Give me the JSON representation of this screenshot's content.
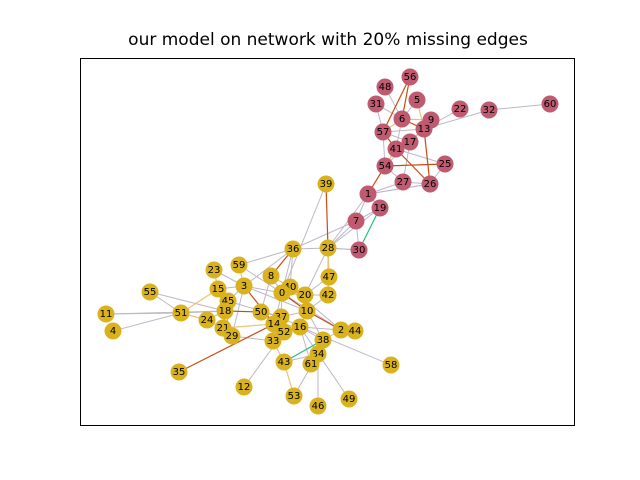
{
  "title": "our model on network with 20% missing edges",
  "colors": {
    "community_red": "#c05a70",
    "community_gold": "#dab21e",
    "edge_observed": "#bdb8c6",
    "edge_predicted_correct": "#cc4b12",
    "edge_predicted_other": "#e9c37a",
    "edge_green": "#1fc07a"
  },
  "nodes": [
    {
      "id": "56",
      "group": "red"
    },
    {
      "id": "48",
      "group": "red"
    },
    {
      "id": "5",
      "group": "red"
    },
    {
      "id": "31",
      "group": "red"
    },
    {
      "id": "6",
      "group": "red"
    },
    {
      "id": "9",
      "group": "red"
    },
    {
      "id": "22",
      "group": "red"
    },
    {
      "id": "32",
      "group": "red"
    },
    {
      "id": "60",
      "group": "red"
    },
    {
      "id": "57",
      "group": "red"
    },
    {
      "id": "13",
      "group": "red"
    },
    {
      "id": "17",
      "group": "red"
    },
    {
      "id": "41",
      "group": "red"
    },
    {
      "id": "54",
      "group": "red"
    },
    {
      "id": "25",
      "group": "red"
    },
    {
      "id": "27",
      "group": "red"
    },
    {
      "id": "26",
      "group": "red"
    },
    {
      "id": "1",
      "group": "red"
    },
    {
      "id": "19",
      "group": "red"
    },
    {
      "id": "7",
      "group": "red"
    },
    {
      "id": "30",
      "group": "red"
    },
    {
      "id": "39",
      "group": "gold"
    },
    {
      "id": "36",
      "group": "gold"
    },
    {
      "id": "28",
      "group": "gold"
    },
    {
      "id": "59",
      "group": "gold"
    },
    {
      "id": "23",
      "group": "gold"
    },
    {
      "id": "8",
      "group": "gold"
    },
    {
      "id": "47",
      "group": "gold"
    },
    {
      "id": "3",
      "group": "gold"
    },
    {
      "id": "15",
      "group": "gold"
    },
    {
      "id": "40",
      "group": "gold"
    },
    {
      "id": "0",
      "group": "gold"
    },
    {
      "id": "20",
      "group": "gold"
    },
    {
      "id": "42",
      "group": "gold"
    },
    {
      "id": "55",
      "group": "gold"
    },
    {
      "id": "45",
      "group": "gold"
    },
    {
      "id": "18",
      "group": "gold"
    },
    {
      "id": "50",
      "group": "gold"
    },
    {
      "id": "37",
      "group": "gold"
    },
    {
      "id": "10",
      "group": "gold"
    },
    {
      "id": "51",
      "group": "gold"
    },
    {
      "id": "24",
      "group": "gold"
    },
    {
      "id": "14",
      "group": "gold"
    },
    {
      "id": "16",
      "group": "gold"
    },
    {
      "id": "52",
      "group": "gold"
    },
    {
      "id": "21",
      "group": "gold"
    },
    {
      "id": "29",
      "group": "gold"
    },
    {
      "id": "33",
      "group": "gold"
    },
    {
      "id": "2",
      "group": "gold"
    },
    {
      "id": "44",
      "group": "gold"
    },
    {
      "id": "38",
      "group": "gold"
    },
    {
      "id": "11",
      "group": "gold"
    },
    {
      "id": "4",
      "group": "gold"
    },
    {
      "id": "34",
      "group": "gold"
    },
    {
      "id": "43",
      "group": "gold"
    },
    {
      "id": "61",
      "group": "gold"
    },
    {
      "id": "58",
      "group": "gold"
    },
    {
      "id": "35",
      "group": "gold"
    },
    {
      "id": "12",
      "group": "gold"
    },
    {
      "id": "53",
      "group": "gold"
    },
    {
      "id": "46",
      "group": "gold"
    },
    {
      "id": "49",
      "group": "gold"
    }
  ],
  "edges": [
    [
      "56",
      "6",
      "correct"
    ],
    [
      "56",
      "57",
      "correct"
    ],
    [
      "48",
      "6",
      "observed"
    ],
    [
      "5",
      "6",
      "observed"
    ],
    [
      "5",
      "13",
      "other"
    ],
    [
      "31",
      "6",
      "observed"
    ],
    [
      "31",
      "57",
      "observed"
    ],
    [
      "6",
      "9",
      "other"
    ],
    [
      "6",
      "13",
      "correct"
    ],
    [
      "6",
      "57",
      "other"
    ],
    [
      "6",
      "41",
      "observed"
    ],
    [
      "9",
      "13",
      "observed"
    ],
    [
      "9",
      "17",
      "observed"
    ],
    [
      "22",
      "13",
      "observed"
    ],
    [
      "32",
      "13",
      "observed"
    ],
    [
      "60",
      "32",
      "observed"
    ],
    [
      "57",
      "13",
      "observed"
    ],
    [
      "57",
      "17",
      "observed"
    ],
    [
      "57",
      "41",
      "correct"
    ],
    [
      "57",
      "54",
      "observed"
    ],
    [
      "13",
      "17",
      "other"
    ],
    [
      "13",
      "26",
      "correct"
    ],
    [
      "17",
      "41",
      "other"
    ],
    [
      "17",
      "54",
      "observed"
    ],
    [
      "17",
      "27",
      "observed"
    ],
    [
      "41",
      "54",
      "other"
    ],
    [
      "41",
      "25",
      "observed"
    ],
    [
      "41",
      "26",
      "correct"
    ],
    [
      "54",
      "25",
      "correct"
    ],
    [
      "54",
      "1",
      "correct"
    ],
    [
      "54",
      "27",
      "observed"
    ],
    [
      "25",
      "26",
      "observed"
    ],
    [
      "27",
      "26",
      "observed"
    ],
    [
      "27",
      "1",
      "observed"
    ],
    [
      "26",
      "1",
      "observed"
    ],
    [
      "1",
      "19",
      "observed"
    ],
    [
      "1",
      "7",
      "observed"
    ],
    [
      "1",
      "26",
      "observed"
    ],
    [
      "19",
      "7",
      "observed"
    ],
    [
      "19",
      "30",
      "green"
    ],
    [
      "7",
      "30",
      "observed"
    ],
    [
      "7",
      "36",
      "observed"
    ],
    [
      "7",
      "28",
      "observed"
    ],
    [
      "1",
      "28",
      "observed"
    ],
    [
      "19",
      "28",
      "observed"
    ],
    [
      "30",
      "28",
      "observed"
    ],
    [
      "39",
      "28",
      "correct"
    ],
    [
      "39",
      "0",
      "observed"
    ],
    [
      "36",
      "28",
      "observed"
    ],
    [
      "36",
      "59",
      "observed"
    ],
    [
      "36",
      "8",
      "correct"
    ],
    [
      "36",
      "0",
      "observed"
    ],
    [
      "36",
      "40",
      "observed"
    ],
    [
      "36",
      "3",
      "observed"
    ],
    [
      "28",
      "47",
      "other"
    ],
    [
      "28",
      "30",
      "observed"
    ],
    [
      "28",
      "20",
      "observed"
    ],
    [
      "28",
      "42",
      "observed"
    ],
    [
      "59",
      "3",
      "other"
    ],
    [
      "59",
      "0",
      "observed"
    ],
    [
      "23",
      "3",
      "observed"
    ],
    [
      "23",
      "15",
      "other"
    ],
    [
      "8",
      "0",
      "observed"
    ],
    [
      "8",
      "40",
      "other"
    ],
    [
      "47",
      "20",
      "observed"
    ],
    [
      "47",
      "42",
      "other"
    ],
    [
      "3",
      "15",
      "observed"
    ],
    [
      "3",
      "45",
      "observed"
    ],
    [
      "3",
      "0",
      "observed"
    ],
    [
      "3",
      "10",
      "observed"
    ],
    [
      "15",
      "45",
      "observed"
    ],
    [
      "15",
      "18",
      "observed"
    ],
    [
      "15",
      "51",
      "other"
    ],
    [
      "40",
      "0",
      "observed"
    ],
    [
      "40",
      "20",
      "observed"
    ],
    [
      "0",
      "20",
      "other"
    ],
    [
      "0",
      "10",
      "correct"
    ],
    [
      "0",
      "37",
      "observed"
    ],
    [
      "0",
      "14",
      "observed"
    ],
    [
      "20",
      "42",
      "observed"
    ],
    [
      "20",
      "10",
      "observed"
    ],
    [
      "55",
      "51",
      "observed"
    ],
    [
      "55",
      "18",
      "observed"
    ],
    [
      "45",
      "18",
      "observed"
    ],
    [
      "45",
      "21",
      "observed"
    ],
    [
      "18",
      "50",
      "correct"
    ],
    [
      "18",
      "21",
      "observed"
    ],
    [
      "18",
      "24",
      "observed"
    ],
    [
      "18",
      "29",
      "observed"
    ],
    [
      "50",
      "37",
      "observed"
    ],
    [
      "50",
      "14",
      "observed"
    ],
    [
      "50",
      "52",
      "observed"
    ],
    [
      "37",
      "14",
      "observed"
    ],
    [
      "37",
      "16",
      "observed"
    ],
    [
      "37",
      "10",
      "observed"
    ],
    [
      "10",
      "16",
      "observed"
    ],
    [
      "10",
      "2",
      "correct"
    ],
    [
      "10",
      "38",
      "observed"
    ],
    [
      "51",
      "24",
      "other"
    ],
    [
      "51",
      "11",
      "observed"
    ],
    [
      "51",
      "4",
      "observed"
    ],
    [
      "51",
      "18",
      "observed"
    ],
    [
      "24",
      "21",
      "observed"
    ],
    [
      "14",
      "52",
      "observed"
    ],
    [
      "14",
      "33",
      "observed"
    ],
    [
      "14",
      "16",
      "observed"
    ],
    [
      "16",
      "52",
      "observed"
    ],
    [
      "16",
      "2",
      "observed"
    ],
    [
      "21",
      "29",
      "observed"
    ],
    [
      "21",
      "14",
      "other"
    ],
    [
      "29",
      "33",
      "observed"
    ],
    [
      "33",
      "43",
      "other"
    ],
    [
      "2",
      "44",
      "observed"
    ],
    [
      "2",
      "38",
      "observed"
    ],
    [
      "2",
      "0",
      "observed"
    ],
    [
      "38",
      "34",
      "observed"
    ],
    [
      "38",
      "16",
      "observed"
    ],
    [
      "34",
      "43",
      "observed"
    ],
    [
      "34",
      "61",
      "observed"
    ],
    [
      "43",
      "53",
      "other"
    ],
    [
      "43",
      "38",
      "green"
    ],
    [
      "61",
      "16",
      "observed"
    ],
    [
      "58",
      "16",
      "observed"
    ],
    [
      "35",
      "14",
      "correct"
    ],
    [
      "12",
      "52",
      "observed"
    ],
    [
      "53",
      "34",
      "observed"
    ],
    [
      "46",
      "34",
      "observed"
    ],
    [
      "49",
      "16",
      "observed"
    ],
    [
      "11",
      "18",
      "observed"
    ],
    [
      "8",
      "50",
      "observed"
    ],
    [
      "3",
      "14",
      "correct"
    ],
    [
      "42",
      "10",
      "observed"
    ],
    [
      "3",
      "29",
      "observed"
    ],
    [
      "40",
      "2",
      "observed"
    ],
    [
      "45",
      "37",
      "observed"
    ]
  ]
}
